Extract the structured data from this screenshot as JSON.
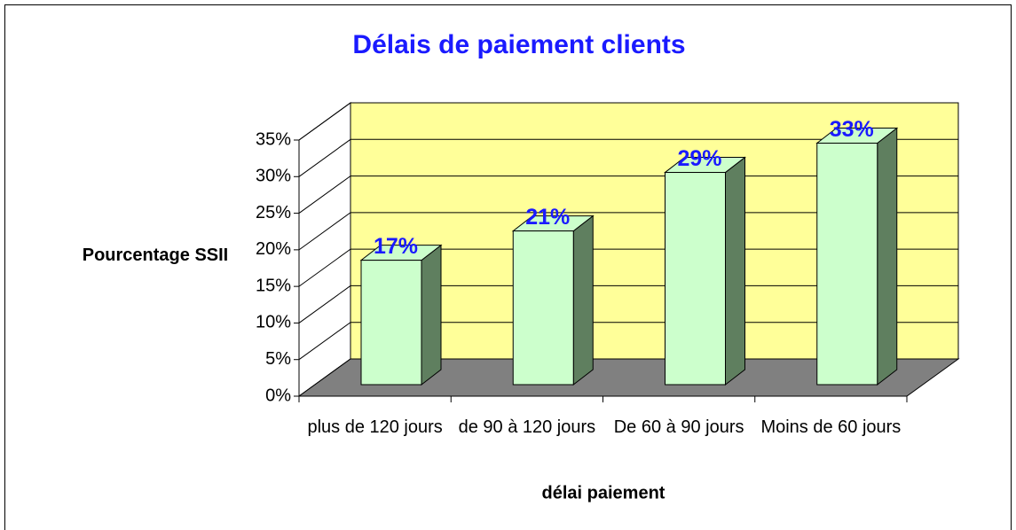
{
  "chart_data": {
    "type": "bar3d",
    "title": "Délais de paiement clients",
    "x_label": "délai paiement",
    "y_label": "Pourcentage SSII",
    "categories": [
      "plus de 120 jours",
      "de 90 à 120 jours",
      "De 60 à 90 jours",
      "Moins de 60 jours"
    ],
    "values": [
      17,
      21,
      29,
      33
    ],
    "value_labels": [
      "17%",
      "21%",
      "29%",
      "33%"
    ],
    "color": "#ccffcc",
    "wall_color": "#ffff99",
    "floor_color": "#808080",
    "ylim": [
      0,
      35
    ],
    "yticks": [
      {
        "value": 0,
        "label": "0%"
      },
      {
        "value": 5,
        "label": "5%"
      },
      {
        "value": 10,
        "label": "10%"
      },
      {
        "value": 15,
        "label": "15%"
      },
      {
        "value": 20,
        "label": "20%"
      },
      {
        "value": 25,
        "label": "25%"
      },
      {
        "value": 30,
        "label": "30%"
      },
      {
        "value": 35,
        "label": "35%"
      }
    ],
    "grid": true
  }
}
